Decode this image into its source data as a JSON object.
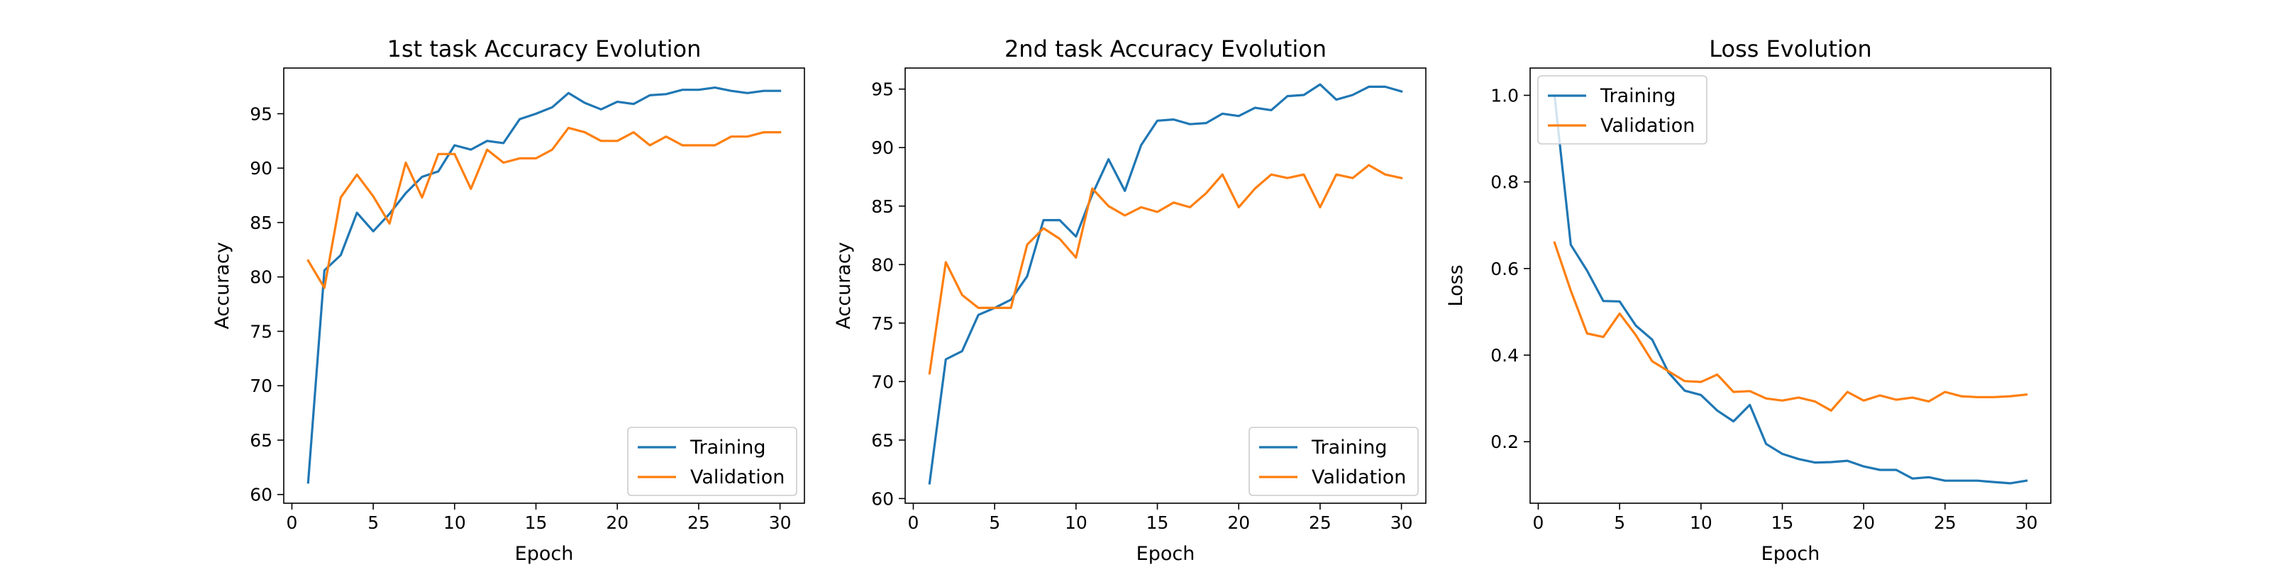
{
  "colors": {
    "training": "#1f77b4",
    "validation": "#ff7f0e"
  },
  "chart_data": [
    {
      "type": "line",
      "title": "1st task Accuracy Evolution",
      "xlabel": "Epoch",
      "ylabel": "Accuracy",
      "xlim": [
        -0.5,
        31.5
      ],
      "ylim": [
        59.2,
        99.2
      ],
      "xticks": [
        0,
        5,
        10,
        15,
        20,
        25,
        30
      ],
      "yticks": [
        60,
        65,
        70,
        75,
        80,
        85,
        90,
        95
      ],
      "legend_position": "lower right",
      "x": [
        1,
        2,
        3,
        4,
        5,
        6,
        7,
        8,
        9,
        10,
        11,
        12,
        13,
        14,
        15,
        16,
        17,
        18,
        19,
        20,
        21,
        22,
        23,
        24,
        25,
        26,
        27,
        28,
        29,
        30
      ],
      "series": [
        {
          "name": "Training",
          "values": [
            61.1,
            80.6,
            82.0,
            85.9,
            84.2,
            85.8,
            87.7,
            89.2,
            89.7,
            92.1,
            91.7,
            92.5,
            92.3,
            94.5,
            95.0,
            95.6,
            96.9,
            96.0,
            95.4,
            96.1,
            95.9,
            96.7,
            96.8,
            97.2,
            97.2,
            97.4,
            97.1,
            96.9,
            97.1,
            97.1
          ]
        },
        {
          "name": "Validation",
          "values": [
            81.5,
            79.0,
            87.3,
            89.4,
            87.4,
            84.9,
            90.5,
            87.3,
            91.3,
            91.3,
            88.1,
            91.7,
            90.5,
            90.9,
            90.9,
            91.7,
            93.7,
            93.3,
            92.5,
            92.5,
            93.3,
            92.1,
            92.9,
            92.1,
            92.1,
            92.1,
            92.9,
            92.9,
            93.3,
            93.3
          ]
        }
      ]
    },
    {
      "type": "line",
      "title": "2nd task Accuracy Evolution",
      "xlabel": "Epoch",
      "ylabel": "Accuracy",
      "xlim": [
        -0.5,
        31.5
      ],
      "ylim": [
        59.6,
        96.8
      ],
      "xticks": [
        0,
        5,
        10,
        15,
        20,
        25,
        30
      ],
      "yticks": [
        60,
        65,
        70,
        75,
        80,
        85,
        90,
        95
      ],
      "legend_position": "lower right",
      "x": [
        1,
        2,
        3,
        4,
        5,
        6,
        7,
        8,
        9,
        10,
        11,
        12,
        13,
        14,
        15,
        16,
        17,
        18,
        19,
        20,
        21,
        22,
        23,
        24,
        25,
        26,
        27,
        28,
        29,
        30
      ],
      "series": [
        {
          "name": "Training",
          "values": [
            61.3,
            71.9,
            72.6,
            75.7,
            76.3,
            77.0,
            79.0,
            83.8,
            83.8,
            82.4,
            86.0,
            89.0,
            86.3,
            90.2,
            92.3,
            92.4,
            92.0,
            92.1,
            92.9,
            92.7,
            93.4,
            93.2,
            94.4,
            94.5,
            95.4,
            94.1,
            94.5,
            95.2,
            95.2,
            94.8
          ]
        },
        {
          "name": "Validation",
          "values": [
            70.7,
            80.2,
            77.4,
            76.3,
            76.3,
            76.3,
            81.7,
            83.1,
            82.2,
            80.6,
            86.5,
            85.0,
            84.2,
            84.9,
            84.5,
            85.3,
            84.9,
            86.1,
            87.7,
            84.9,
            86.5,
            87.7,
            87.4,
            87.7,
            84.9,
            87.7,
            87.4,
            88.5,
            87.7,
            87.4
          ]
        }
      ]
    },
    {
      "type": "line",
      "title": "Loss Evolution",
      "xlabel": "Epoch",
      "ylabel": "Loss",
      "xlim": [
        -0.5,
        31.5
      ],
      "ylim": [
        0.058,
        1.063
      ],
      "xticks": [
        0,
        5,
        10,
        15,
        20,
        25,
        30
      ],
      "yticks": [
        0.2,
        0.4,
        0.6,
        0.8,
        1.0
      ],
      "legend_position": "upper left",
      "x": [
        1,
        2,
        3,
        4,
        5,
        6,
        7,
        8,
        9,
        10,
        11,
        12,
        13,
        14,
        15,
        16,
        17,
        18,
        19,
        20,
        21,
        22,
        23,
        24,
        25,
        26,
        27,
        28,
        29,
        30
      ],
      "series": [
        {
          "name": "Training",
          "values": [
            1.0,
            0.655,
            0.595,
            0.525,
            0.524,
            0.468,
            0.436,
            0.36,
            0.318,
            0.308,
            0.272,
            0.247,
            0.285,
            0.195,
            0.172,
            0.16,
            0.152,
            0.153,
            0.156,
            0.143,
            0.135,
            0.135,
            0.115,
            0.118,
            0.11,
            0.11,
            0.11,
            0.107,
            0.104,
            0.11
          ]
        },
        {
          "name": "Validation",
          "values": [
            0.66,
            0.549,
            0.45,
            0.442,
            0.496,
            0.446,
            0.386,
            0.363,
            0.34,
            0.338,
            0.355,
            0.315,
            0.317,
            0.3,
            0.295,
            0.302,
            0.293,
            0.272,
            0.315,
            0.295,
            0.307,
            0.297,
            0.302,
            0.293,
            0.315,
            0.305,
            0.303,
            0.303,
            0.305,
            0.309
          ]
        }
      ]
    }
  ]
}
